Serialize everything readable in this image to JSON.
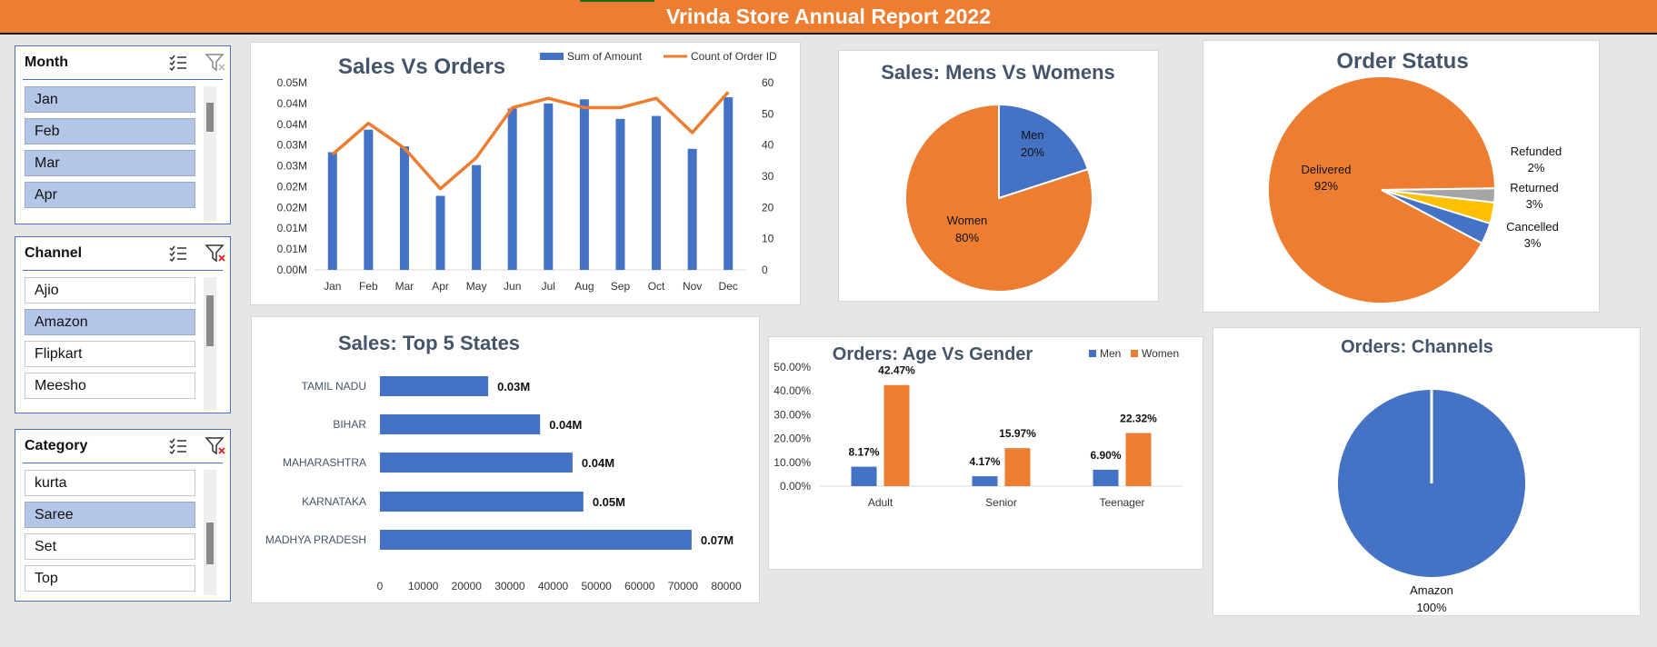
{
  "report_title": "Vrinda Store Annual Report 2022",
  "colors": {
    "blue": "#4472c4",
    "orange": "#ed7d31",
    "gray": "#a5a5a5",
    "yellow": "#ffc000",
    "title_text": "#44546a"
  },
  "slicers": {
    "month": {
      "title": "Month",
      "items": [
        {
          "label": "Jan",
          "selected": true
        },
        {
          "label": "Feb",
          "selected": true
        },
        {
          "label": "Mar",
          "selected": true
        },
        {
          "label": "Apr",
          "selected": true
        }
      ]
    },
    "channel": {
      "title": "Channel",
      "items": [
        {
          "label": "Ajio",
          "selected": false
        },
        {
          "label": "Amazon",
          "selected": true
        },
        {
          "label": "Flipkart",
          "selected": false
        },
        {
          "label": "Meesho",
          "selected": false
        }
      ]
    },
    "category": {
      "title": "Category",
      "items": [
        {
          "label": "kurta",
          "selected": false
        },
        {
          "label": "Saree",
          "selected": true
        },
        {
          "label": "Set",
          "selected": false
        },
        {
          "label": "Top",
          "selected": false
        }
      ]
    }
  },
  "chart_data": [
    {
      "id": "sales_vs_orders",
      "type": "bar+line",
      "title": "Sales Vs Orders",
      "categories": [
        "Jan",
        "Feb",
        "Mar",
        "Apr",
        "May",
        "Jun",
        "Jul",
        "Aug",
        "Sep",
        "Oct",
        "Nov",
        "Dec"
      ],
      "series": [
        {
          "name": "Sum of Amount",
          "type": "bar",
          "axis": "left",
          "values": [
            0.0283,
            0.0337,
            0.0297,
            0.0178,
            0.0252,
            0.0388,
            0.04,
            0.041,
            0.0363,
            0.037,
            0.0291,
            0.0415
          ]
        },
        {
          "name": "Count of Order ID",
          "type": "line",
          "axis": "right",
          "values": [
            37,
            47,
            39,
            26,
            36,
            52,
            55,
            52,
            52,
            55,
            44,
            57
          ]
        }
      ],
      "y_left_ticks": [
        "0.00M",
        "0.01M",
        "0.01M",
        "0.02M",
        "0.02M",
        "0.03M",
        "0.03M",
        "0.04M",
        "0.04M",
        "0.05M"
      ],
      "y_left_range": [
        0,
        0.045
      ],
      "y_right_ticks": [
        "0",
        "10",
        "20",
        "30",
        "40",
        "50",
        "60"
      ],
      "y_right_range": [
        0,
        60
      ],
      "legend": "top-right"
    },
    {
      "id": "mens_vs_womens",
      "type": "pie",
      "title": "Sales: Mens Vs Womens",
      "slices": [
        {
          "name": "Men",
          "value": 20,
          "label": "20%"
        },
        {
          "name": "Women",
          "value": 80,
          "label": "80%"
        }
      ]
    },
    {
      "id": "order_status",
      "type": "pie",
      "title": "Order Status",
      "slices": [
        {
          "name": "Delivered",
          "value": 92,
          "label": "92%"
        },
        {
          "name": "Refunded",
          "value": 2,
          "label": "2%"
        },
        {
          "name": "Returned",
          "value": 3,
          "label": "3%"
        },
        {
          "name": "Cancelled",
          "value": 3,
          "label": "3%"
        }
      ]
    },
    {
      "id": "top_states",
      "type": "bar",
      "orientation": "horizontal",
      "title": "Sales: Top 5 States",
      "categories": [
        "TAMIL NADU",
        "BIHAR",
        "MAHARASHTRA",
        "KARNATAKA",
        "MADHYA PRADESH"
      ],
      "values": [
        25000,
        37000,
        44500,
        47000,
        72000
      ],
      "value_labels": [
        "0.03M",
        "0.04M",
        "0.04M",
        "0.05M",
        "0.07M"
      ],
      "x_ticks": [
        "0",
        "10000",
        "20000",
        "30000",
        "40000",
        "50000",
        "60000",
        "70000",
        "80000"
      ],
      "x_range": [
        0,
        80000
      ]
    },
    {
      "id": "age_vs_gender",
      "type": "bar",
      "title": "Orders: Age Vs Gender",
      "categories": [
        "Adult",
        "Senior",
        "Teenager"
      ],
      "series": [
        {
          "name": "Men",
          "values": [
            8.17,
            4.17,
            6.9
          ],
          "labels": [
            "8.17%",
            "4.17%",
            "6.90%"
          ]
        },
        {
          "name": "Women",
          "values": [
            42.47,
            15.97,
            22.32
          ],
          "labels": [
            "42.47%",
            "15.97%",
            "22.32%"
          ]
        }
      ],
      "y_ticks": [
        "0.00%",
        "10.00%",
        "20.00%",
        "30.00%",
        "40.00%",
        "50.00%"
      ],
      "y_range": [
        0,
        50
      ],
      "legend": "top-right"
    },
    {
      "id": "channels",
      "type": "pie",
      "title": "Orders: Channels",
      "slices": [
        {
          "name": "Amazon",
          "value": 100,
          "label": "100%"
        }
      ]
    }
  ]
}
